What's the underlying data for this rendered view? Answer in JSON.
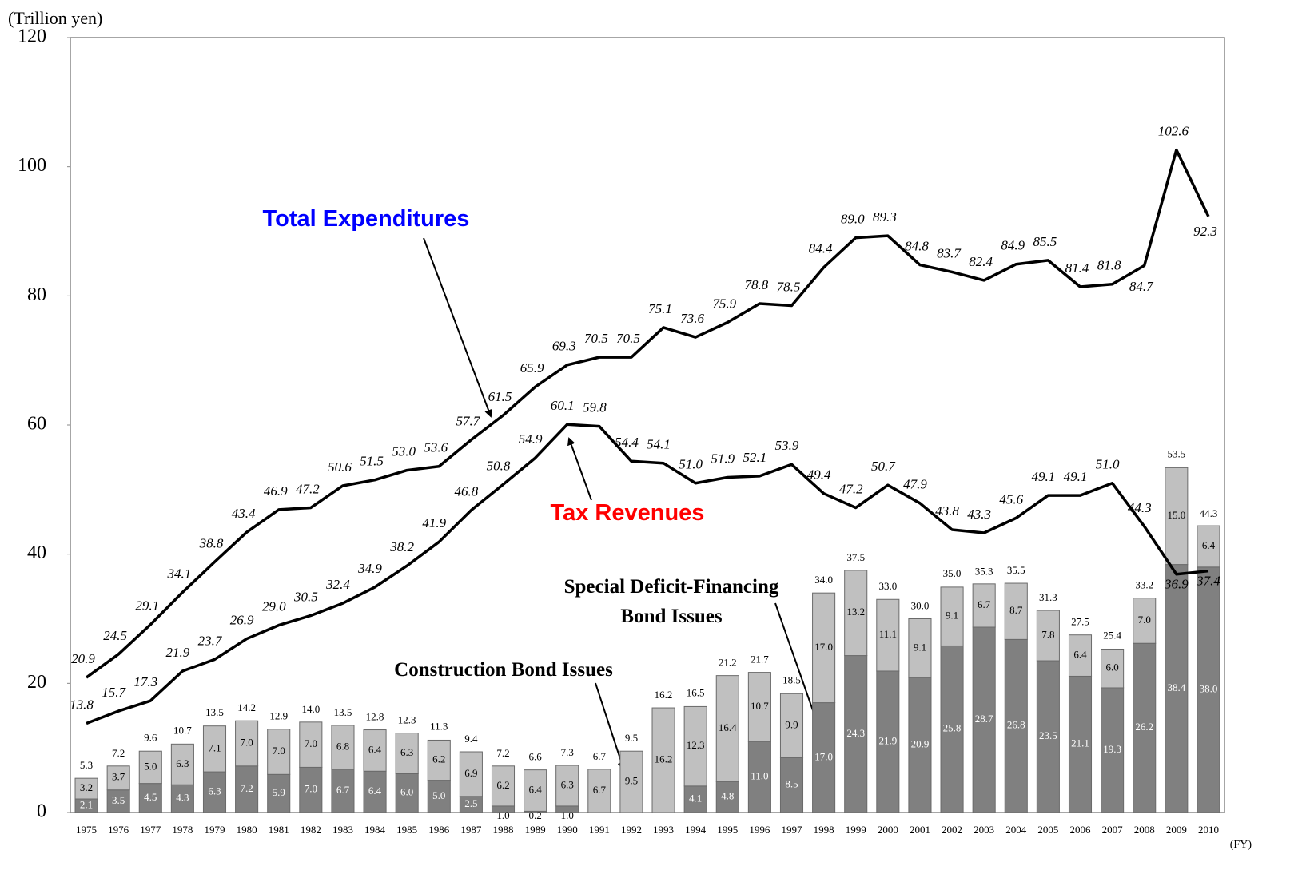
{
  "chart_data": {
    "type": "bar",
    "ylabel": "(Trillion yen)",
    "xlabel": "(FY)",
    "categories": [
      "1975",
      "1976",
      "1977",
      "1978",
      "1979",
      "1980",
      "1981",
      "1982",
      "1983",
      "1984",
      "1985",
      "1986",
      "1987",
      "1988",
      "1989",
      "1990",
      "1991",
      "1992",
      "1993",
      "1994",
      "1995",
      "1996",
      "1997",
      "1998",
      "1999",
      "2000",
      "2001",
      "2002",
      "2003",
      "2004",
      "2005",
      "2006",
      "2007",
      "2008",
      "2009",
      "2010"
    ],
    "ylim": [
      0,
      120
    ],
    "yticks": [
      0,
      20,
      40,
      60,
      80,
      100,
      120
    ],
    "series": [
      {
        "name": "Special Deficit-Financing Bond Issues",
        "type": "bar",
        "color": "#808080",
        "label_color": "#000000",
        "values": [
          2.1,
          3.5,
          4.5,
          4.3,
          6.3,
          7.2,
          5.9,
          7.0,
          6.7,
          6.4,
          6.0,
          5.0,
          2.5,
          1.0,
          0.2,
          1.0,
          null,
          null,
          null,
          4.1,
          4.8,
          11.0,
          8.5,
          17.0,
          24.3,
          21.9,
          20.9,
          25.8,
          28.7,
          26.8,
          23.5,
          21.1,
          19.3,
          26.2,
          38.4,
          38.0
        ],
        "value_labels": [
          "2.1",
          "3.5",
          "4.5",
          "4.3",
          "6.3",
          "7.2",
          "5.9",
          "7.0",
          "6.7",
          "6.4",
          "6.0",
          "5.0",
          "2.5",
          "1.0",
          "0.2",
          "1.0",
          null,
          null,
          null,
          "4.1",
          "4.8",
          "11.0",
          "8.5",
          "17.0",
          "24.3",
          "21.9",
          "20.9",
          "25.8",
          "28.7",
          "26.8",
          "23.5",
          "21.1",
          "19.3",
          "26.2",
          "38.4",
          "38.0"
        ]
      },
      {
        "name": "Construction Bond Issues",
        "type": "bar",
        "color": "#c0c0c0",
        "label_color": "#000000",
        "values": [
          3.2,
          3.7,
          5.0,
          6.3,
          7.1,
          7.0,
          7.0,
          7.0,
          6.8,
          6.4,
          6.3,
          6.2,
          6.9,
          6.2,
          6.4,
          6.3,
          6.7,
          9.5,
          16.2,
          12.3,
          16.4,
          10.7,
          9.9,
          17.0,
          13.2,
          11.1,
          9.1,
          9.1,
          6.7,
          8.7,
          7.8,
          6.4,
          6.0,
          7.0,
          15.0,
          6.4
        ],
        "value_labels": [
          "3.2",
          "3.7",
          "5.0",
          "6.3",
          "7.1",
          "7.0",
          "7.0",
          "7.0",
          "6.8",
          "6.4",
          "6.3",
          "6.2",
          "6.9",
          "6.2",
          "6.4",
          "6.3",
          "6.7",
          "9.5",
          "16.2",
          "12.3",
          "16.4",
          "10.7",
          "9.9",
          "17.0",
          "13.2",
          "11.1",
          "9.1",
          "9.1",
          "6.7",
          "8.7",
          "7.8",
          "6.4",
          "6.0",
          "7.0",
          "15.0",
          "6.4"
        ]
      },
      {
        "name": "Total Expenditures",
        "type": "line",
        "color": "#000000",
        "label_color": "#0000ff",
        "values": [
          20.9,
          24.5,
          29.1,
          34.1,
          38.8,
          43.4,
          46.9,
          47.2,
          50.6,
          51.5,
          53.0,
          53.6,
          57.7,
          61.5,
          65.9,
          69.3,
          70.5,
          70.5,
          75.1,
          73.6,
          75.9,
          78.8,
          78.5,
          84.4,
          89.0,
          89.3,
          84.8,
          83.7,
          82.4,
          84.9,
          85.5,
          81.4,
          81.8,
          84.7,
          102.6,
          92.3
        ],
        "value_labels": [
          "20.9",
          "24.5",
          "29.1",
          "34.1",
          "38.8",
          "43.4",
          "46.9",
          "47.2",
          "50.6",
          "51.5",
          "53.0",
          "53.6",
          "57.7",
          "61.5",
          "65.9",
          "69.3",
          "70.5",
          "70.5",
          "75.1",
          "73.6",
          "75.9",
          "78.8",
          "78.5",
          "84.4",
          "89.0",
          "89.3",
          "84.8",
          "83.7",
          "82.4",
          "84.9",
          "85.5",
          "81.4",
          "81.8",
          "84.7",
          "102.6",
          "92.3"
        ]
      },
      {
        "name": "Tax Revenues",
        "type": "line",
        "color": "#000000",
        "label_color": "#ff0000",
        "values": [
          13.8,
          15.7,
          17.3,
          21.9,
          23.7,
          26.9,
          29.0,
          30.5,
          32.4,
          34.9,
          38.2,
          41.9,
          46.8,
          50.8,
          54.9,
          60.1,
          59.8,
          54.4,
          54.1,
          51.0,
          51.9,
          52.1,
          53.9,
          49.4,
          47.2,
          50.7,
          47.9,
          43.8,
          43.3,
          45.6,
          49.1,
          49.1,
          51.0,
          44.3,
          36.9,
          37.4
        ],
        "value_labels": [
          "13.8",
          "15.7",
          "17.3",
          "21.9",
          "23.7",
          "26.9",
          "29.0",
          "30.5",
          "32.4",
          "34.9",
          "38.2",
          "41.9",
          "46.8",
          "50.8",
          "54.9",
          "60.1",
          "59.8",
          "54.4",
          "54.1",
          "51.0",
          "51.9",
          "52.1",
          "53.9",
          "49.4",
          "47.2",
          "50.7",
          "47.9",
          "43.8",
          "43.3",
          "45.6",
          "49.1",
          "49.1",
          "51.0",
          "44.3",
          "36.9",
          "37.4"
        ]
      }
    ],
    "totals": {
      "values": [
        5.3,
        7.2,
        9.6,
        10.7,
        13.5,
        14.2,
        12.9,
        14.0,
        13.5,
        12.8,
        12.3,
        11.3,
        9.4,
        7.2,
        6.6,
        7.3,
        6.7,
        9.5,
        16.2,
        16.5,
        21.2,
        21.7,
        18.5,
        34.0,
        37.5,
        33.0,
        30.0,
        35.0,
        35.3,
        35.5,
        31.3,
        27.5,
        25.4,
        33.2,
        53.5,
        44.3
      ],
      "value_labels": [
        "5.3",
        "7.2",
        "9.6",
        "10.7",
        "13.5",
        "14.2",
        "12.9",
        "14.0",
        "13.5",
        "12.8",
        "12.3",
        "11.3",
        "9.4",
        "7.2",
        "6.6",
        "7.3",
        "6.7",
        "9.5",
        "16.2",
        "16.5",
        "21.2",
        "21.7",
        "18.5",
        "34.0",
        "37.5",
        "33.0",
        "30.0",
        "35.0",
        "35.3",
        "35.5",
        "31.3",
        "27.5",
        "25.4",
        "33.2",
        "53.5",
        "44.3"
      ]
    }
  }
}
